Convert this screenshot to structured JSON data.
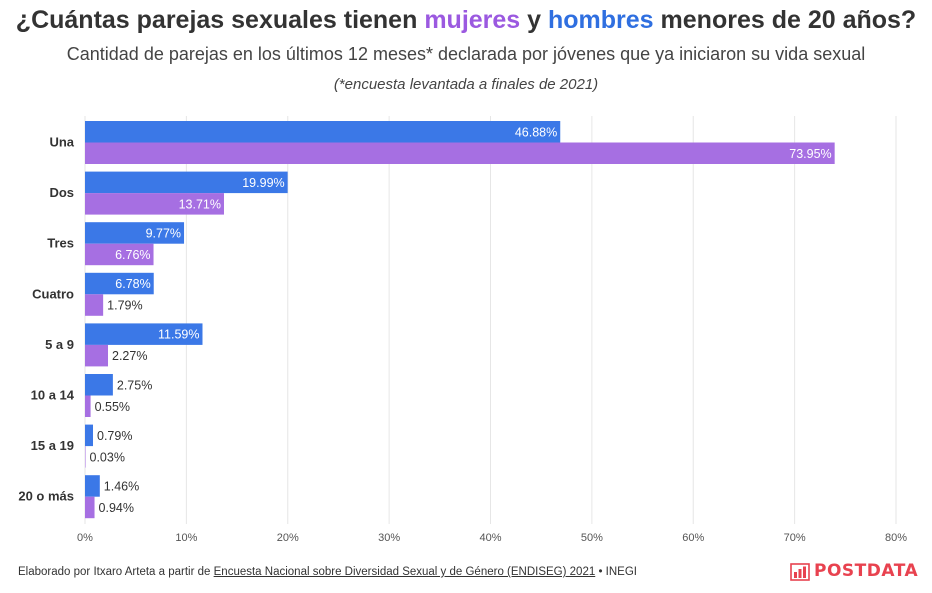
{
  "title": {
    "part1": "¿Cuántas parejas sexuales tienen ",
    "mujeres": "mujeres",
    "part2": " y ",
    "hombres": "hombres",
    "part3": " menores de 20 años?"
  },
  "subtitle": "Cantidad de parejas en los últimos 12 meses* declarada por jóvenes que ya iniciaron su vida sexual",
  "note": "(*encuesta levantada a finales de 2021)",
  "colors": {
    "hombres": "#3b78e7",
    "mujeres": "#a66fe2",
    "grid": "#e6e6e6"
  },
  "chart_data": {
    "type": "bar",
    "orientation": "horizontal",
    "categories": [
      "Una",
      "Dos",
      "Tres",
      "Cuatro",
      "5 a 9",
      "10 a 14",
      "15 a 19",
      "20 o más"
    ],
    "series": [
      {
        "name": "hombres",
        "values": [
          46.88,
          19.99,
          9.77,
          6.78,
          11.59,
          2.75,
          0.79,
          1.46
        ]
      },
      {
        "name": "mujeres",
        "values": [
          73.95,
          13.71,
          6.76,
          1.79,
          2.27,
          0.55,
          0.03,
          0.94
        ]
      }
    ],
    "value_labels": {
      "hombres": [
        "46.88%",
        "19.99%",
        "9.77%",
        "6.78%",
        "11.59%",
        "2.75%",
        "0.79%",
        "1.46%"
      ],
      "mujeres": [
        "73.95%",
        "13.71%",
        "6.76%",
        "1.79%",
        "2.27%",
        "0.55%",
        "0.03%",
        "0.94%"
      ]
    },
    "xlim": [
      0,
      80
    ],
    "xticks": [
      0,
      10,
      20,
      30,
      40,
      50,
      60,
      70,
      80
    ],
    "xtick_labels": [
      "0%",
      "10%",
      "20%",
      "30%",
      "40%",
      "50%",
      "60%",
      "70%",
      "80%"
    ],
    "grid": true
  },
  "footer": {
    "prefix": "Elaborado por Itxaro Arteta a partir de ",
    "link": "Encuesta Nacional sobre Diversidad Sexual y de Género (ENDISEG) 2021",
    "suffix": " • INEGI"
  },
  "logo": {
    "text": "POSTDATA",
    "icon": "bar-chart-icon"
  }
}
